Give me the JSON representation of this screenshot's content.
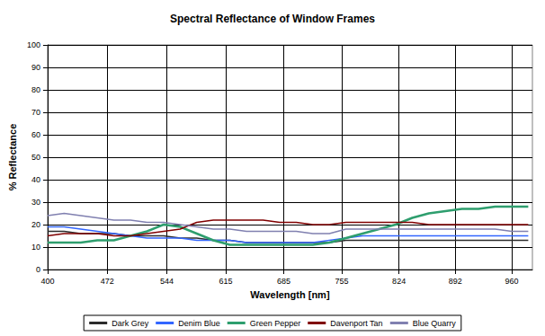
{
  "chart_data": {
    "type": "line",
    "title": "Spectral Reflectance of Window Frames",
    "x_label": "Wavelength [nm]",
    "y_label": "% Reflectance",
    "x": [
      400,
      420,
      440,
      460,
      480,
      500,
      520,
      540,
      560,
      580,
      600,
      620,
      640,
      660,
      680,
      700,
      720,
      740,
      760,
      780,
      800,
      820,
      840,
      860,
      880,
      900,
      920,
      940,
      960,
      980
    ],
    "series": [
      {
        "name": "Dark Grey",
        "color": "#2b2b2b",
        "values": [
          17,
          17,
          16,
          16,
          16,
          15,
          15,
          15,
          14,
          14,
          13,
          13,
          12,
          12,
          12,
          12,
          12,
          12,
          13,
          13,
          13,
          13,
          13,
          13,
          13,
          13,
          13,
          13,
          13,
          13
        ]
      },
      {
        "name": "Denim Blue",
        "color": "#3366ff",
        "values": [
          19,
          19,
          18,
          17,
          16,
          15,
          14,
          14,
          14,
          13,
          13,
          13,
          12,
          12,
          12,
          12,
          12,
          13,
          14,
          15,
          15,
          15,
          15,
          15,
          15,
          15,
          15,
          15,
          15,
          15
        ]
      },
      {
        "name": "Green Pepper",
        "color": "#2e9e6e",
        "values": [
          12,
          12,
          12,
          13,
          13,
          15,
          17,
          20,
          19,
          16,
          13,
          11,
          11,
          11,
          11,
          11,
          11,
          12,
          14,
          16,
          18,
          20,
          23,
          25,
          26,
          27,
          27,
          28,
          28,
          28
        ]
      },
      {
        "name": "Davenport Tan",
        "color": "#800000",
        "values": [
          15,
          16,
          16,
          16,
          15,
          15,
          16,
          17,
          18,
          21,
          22,
          22,
          22,
          22,
          21,
          21,
          20,
          20,
          21,
          21,
          21,
          21,
          21,
          20,
          20,
          20,
          20,
          20,
          20,
          20
        ]
      },
      {
        "name": "Blue Quarry",
        "color": "#8080b0",
        "values": [
          24,
          25,
          24,
          23,
          22,
          22,
          21,
          21,
          20,
          19,
          18,
          18,
          17,
          17,
          17,
          17,
          16,
          16,
          18,
          18,
          18,
          18,
          18,
          18,
          18,
          18,
          18,
          18,
          17,
          17
        ]
      }
    ],
    "xlim": [
      400,
      985
    ],
    "xticks": [
      400,
      472,
      544,
      615,
      685,
      755,
      824,
      892,
      960
    ],
    "ylim": [
      0,
      100
    ],
    "yticks": [
      0,
      10,
      20,
      30,
      40,
      50,
      60,
      70,
      80,
      90,
      100
    ],
    "grid": true,
    "legend": "bottom"
  }
}
